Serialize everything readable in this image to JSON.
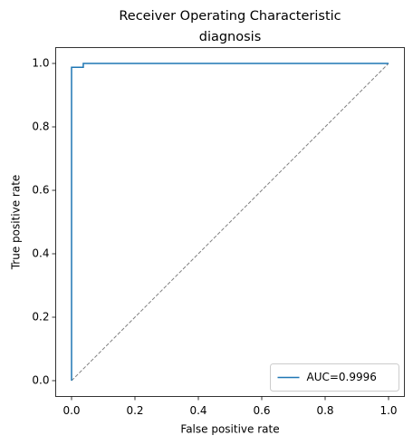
{
  "chart_data": {
    "type": "line",
    "title": "Receiver Operating Characteristic",
    "subtitle": "diagnosis",
    "x_label": "False positive rate",
    "y_label": "True positive rate",
    "xlim": [
      -0.05,
      1.05
    ],
    "ylim": [
      -0.05,
      1.05
    ],
    "xticks": [
      {
        "value": 0,
        "label": "0.0"
      },
      0.2,
      0.4,
      0.6,
      0.8,
      {
        "value": 1,
        "label": "1.0"
      }
    ],
    "yticks": [
      {
        "value": 0,
        "label": "0.0"
      },
      0.2,
      0.4,
      0.6,
      0.8,
      {
        "value": 1,
        "label": "1.0"
      }
    ],
    "legend_position": "lower right",
    "series": [
      {
        "name": "AUC=0.9996",
        "color": "#1f77b4",
        "x": [
          0,
          0,
          0.037,
          0.037,
          1
        ],
        "y": [
          0,
          0.988,
          0.988,
          1,
          1
        ]
      },
      {
        "color": "#808080",
        "dashed": true,
        "x": [
          0,
          1
        ],
        "y": [
          0,
          1
        ]
      }
    ]
  }
}
